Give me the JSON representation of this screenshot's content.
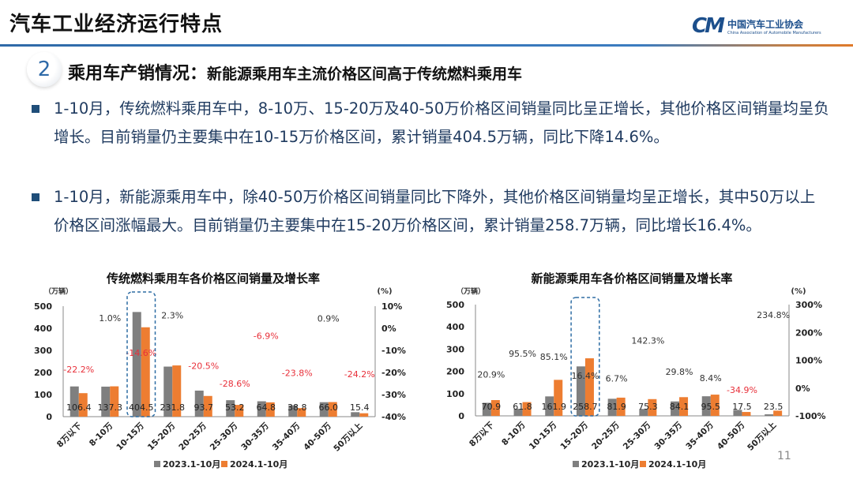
{
  "header": {
    "title": "汽车工业经济运行特点",
    "logo_cn": "中国汽车工业协会",
    "logo_en": "China Association of Automobile Manufacturers"
  },
  "section": {
    "number": "2",
    "title_main": "乘用车产销情况：",
    "title_sub": "新能源乘用车主流价格区间高于传统燃料乘用车"
  },
  "bullets": [
    "1-10月，传统燃料乘用车中，8-10万、15-20万及40-50万价格区间销量同比呈正增长，其他价格区间销量均呈负增长。目前销量仍主要集中在10-15万价格区间，累计销量404.5万辆，同比下降14.6%。",
    "1-10月，新能源乘用车中，除40-50万价格区间销量同比下降外，其他价格区间销量均呈正增长，其中50万以上价格区间涨幅最大。目前销量仍主要集中在15-20万价格区间，累计销量258.7万辆，同比增长16.4%。"
  ],
  "page_number": "11",
  "colors": {
    "series_2023": "#7f7f7f",
    "series_2024": "#ed7d31",
    "negative_label": "#e8303a",
    "positive_label": "#333333",
    "highlight_box": "#2e6da4"
  },
  "chart_data": [
    {
      "type": "bar",
      "title": "传统燃料乘用车各价格区间销量及增长率",
      "ylabel": "（万辆）",
      "y2label": "(%)",
      "ylim": [
        0,
        500
      ],
      "yticks": [
        0,
        100,
        200,
        300,
        400,
        500
      ],
      "y2lim": [
        -40,
        10
      ],
      "y2ticks": [
        "-40%",
        "-30%",
        "-20%",
        "-10%",
        "0%",
        "10%"
      ],
      "categories": [
        "8万以下",
        "8-10万",
        "10-15万",
        "15-20万",
        "20-25万",
        "25-30万",
        "30-35万",
        "35-40万",
        "40-50万",
        "50万以上"
      ],
      "series": [
        {
          "name": "2023.1-10月",
          "values": [
            136.8,
            135.9,
            473.7,
            226.6,
            117.9,
            74.5,
            69.6,
            50.9,
            65.4,
            20.3
          ]
        },
        {
          "name": "2024.1-10月",
          "values": [
            106.4,
            137.3,
            404.5,
            231.8,
            93.7,
            53.2,
            64.8,
            38.8,
            66.0,
            15.4
          ],
          "labels": [
            "106.4",
            "137.3",
            "404.5",
            "231.8",
            "93.7",
            "53.2",
            "64.8",
            "38.8",
            "66.0",
            "15.4"
          ]
        }
      ],
      "growth": [
        -22.2,
        1.0,
        -14.6,
        2.3,
        -20.5,
        -28.6,
        -6.9,
        -23.8,
        0.9,
        -24.2
      ],
      "growth_labels": [
        "-22.2%",
        "1.0%",
        "-14.6%",
        "2.3%",
        "-20.5%",
        "-28.6%",
        "-6.9%",
        "-23.8%",
        "0.9%",
        "-24.2%"
      ],
      "highlight_category": "10-15万",
      "legend": "bottom",
      "grid": false
    },
    {
      "type": "bar",
      "title": "新能源乘用车各价格区间销量及增长率",
      "ylabel": "（万辆）",
      "y2label": "(%)",
      "ylim": [
        0,
        500
      ],
      "yticks": [
        0,
        100,
        200,
        300,
        400,
        500
      ],
      "y2lim": [
        -100,
        300
      ],
      "y2ticks": [
        "-100%",
        "0%",
        "100%",
        "200%",
        "300%"
      ],
      "categories": [
        "8万以下",
        "8-10万",
        "10-15万",
        "15-20万",
        "20-25万",
        "25-30万",
        "30-35万",
        "35-40万",
        "40-50万",
        "50万以上"
      ],
      "series": [
        {
          "name": "2023.1-10月",
          "values": [
            58.6,
            31.6,
            87.5,
            222.3,
            76.8,
            31.1,
            64.8,
            88.1,
            26.9,
            7.0
          ]
        },
        {
          "name": "2024.1-10月",
          "values": [
            70.9,
            61.8,
            161.9,
            258.7,
            81.9,
            75.3,
            84.1,
            95.5,
            17.5,
            23.5
          ],
          "labels": [
            "70.9",
            "61.8",
            "161.9",
            "258.7",
            "81.9",
            "75.3",
            "84.1",
            "95.5",
            "17.5",
            "23.5"
          ]
        }
      ],
      "growth": [
        20.9,
        95.5,
        85.1,
        16.4,
        6.7,
        142.3,
        29.8,
        8.4,
        -34.9,
        234.8
      ],
      "growth_labels": [
        "20.9%",
        "95.5%",
        "85.1%",
        "16.4%",
        "6.7%",
        "142.3%",
        "29.8%",
        "8.4%",
        "-34.9%",
        "234.8%"
      ],
      "highlight_category": "15-20万",
      "legend": "bottom",
      "grid": false
    }
  ]
}
